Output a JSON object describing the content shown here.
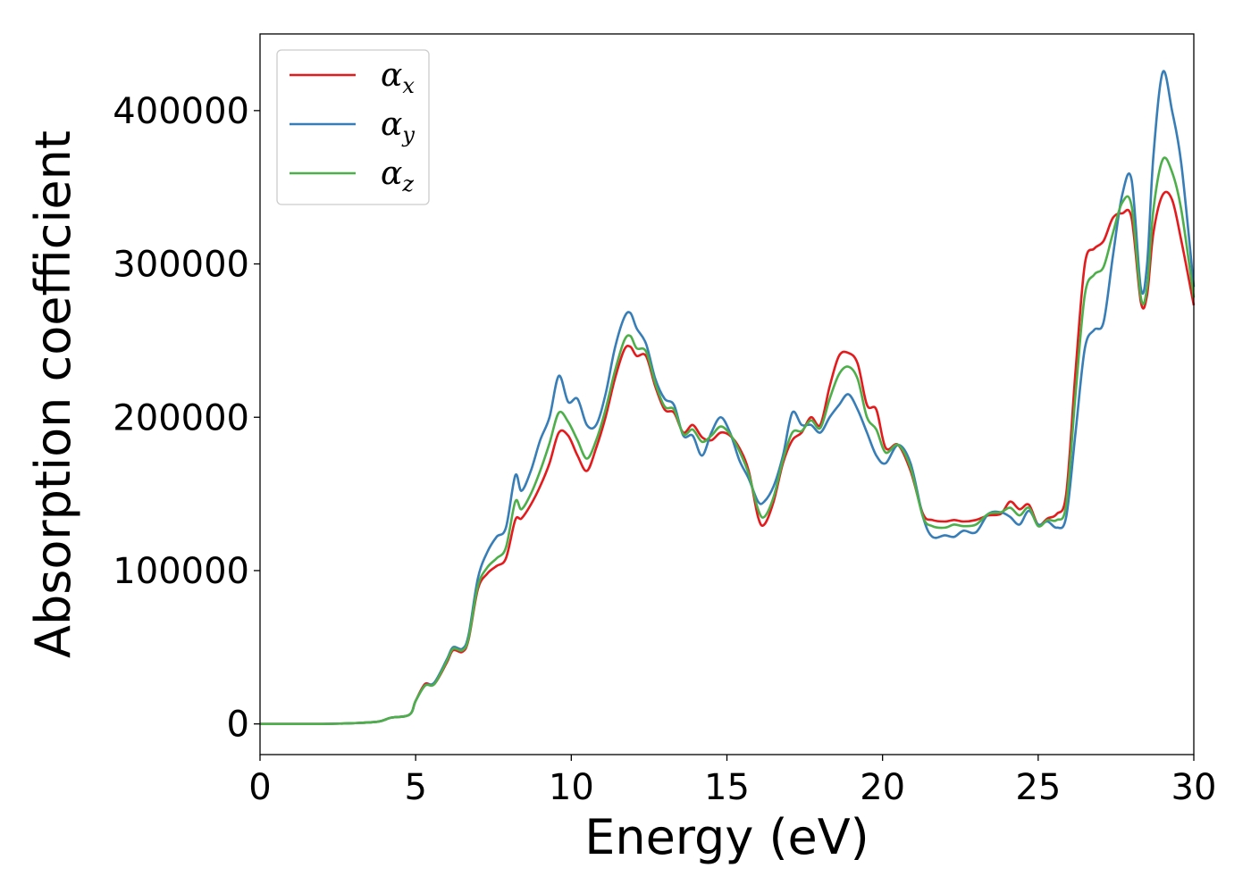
{
  "chart_data": {
    "type": "line",
    "xlabel": "Energy (eV)",
    "ylabel": "Absorption coefficient",
    "xlim": [
      0,
      30
    ],
    "ylim": [
      -20000,
      450000
    ],
    "xticks": [
      "0",
      "5",
      "10",
      "15",
      "20",
      "25",
      "30"
    ],
    "yticks": [
      "0",
      "100000",
      "200000",
      "300000",
      "400000"
    ],
    "grid": false,
    "legend_placement": "top-left",
    "series": [
      {
        "name": "α",
        "subscript": "x",
        "color": "#e41a1c",
        "x": [
          0,
          1,
          2,
          3,
          3.8,
          4.2,
          4.8,
          5.0,
          5.3,
          5.6,
          6.0,
          6.2,
          6.5,
          6.7,
          7.0,
          7.3,
          7.6,
          7.9,
          8.2,
          8.4,
          8.7,
          9.0,
          9.3,
          9.6,
          9.9,
          10.2,
          10.5,
          10.8,
          11.1,
          11.4,
          11.7,
          11.9,
          12.1,
          12.4,
          12.7,
          13.0,
          13.3,
          13.6,
          13.9,
          14.2,
          14.5,
          14.8,
          15.1,
          15.4,
          15.7,
          16.0,
          16.2,
          16.5,
          16.8,
          17.1,
          17.4,
          17.7,
          18.0,
          18.3,
          18.6,
          18.9,
          19.2,
          19.5,
          19.8,
          20.1,
          20.5,
          20.9,
          21.3,
          21.6,
          22.0,
          22.3,
          22.6,
          23.0,
          23.4,
          23.8,
          24.1,
          24.4,
          24.7,
          25.0,
          25.3,
          25.6,
          25.9,
          26.2,
          26.5,
          26.8,
          27.1,
          27.4,
          27.7,
          28.0,
          28.3,
          28.5,
          28.7,
          29.0,
          29.3,
          29.6,
          30.0
        ],
        "y": [
          0,
          0,
          0,
          500,
          1500,
          4000,
          6000,
          15000,
          26000,
          26000,
          40000,
          48000,
          47000,
          55000,
          88000,
          98000,
          103000,
          108000,
          133000,
          134000,
          143000,
          155000,
          170000,
          190000,
          188000,
          175000,
          165000,
          180000,
          200000,
          225000,
          244000,
          246000,
          240000,
          240000,
          220000,
          205000,
          203000,
          190000,
          195000,
          187000,
          185000,
          190000,
          188000,
          180000,
          165000,
          135000,
          130000,
          145000,
          170000,
          185000,
          190000,
          200000,
          195000,
          220000,
          240000,
          242000,
          235000,
          208000,
          205000,
          180000,
          182000,
          165000,
          137000,
          133000,
          132000,
          133000,
          132000,
          133000,
          136000,
          137000,
          145000,
          140000,
          143000,
          130000,
          134000,
          137000,
          150000,
          230000,
          300000,
          310000,
          315000,
          330000,
          333000,
          330000,
          275000,
          280000,
          320000,
          345000,
          342000,
          315000,
          273000
        ]
      },
      {
        "name": "α",
        "subscript": "y",
        "color": "#377eb8",
        "x": [
          0,
          1,
          2,
          3,
          3.8,
          4.2,
          4.8,
          5.0,
          5.3,
          5.6,
          6.0,
          6.2,
          6.5,
          6.7,
          7.0,
          7.3,
          7.6,
          7.9,
          8.2,
          8.4,
          8.7,
          9.0,
          9.3,
          9.6,
          9.9,
          10.2,
          10.5,
          10.8,
          11.1,
          11.4,
          11.7,
          11.9,
          12.1,
          12.4,
          12.7,
          13.0,
          13.3,
          13.6,
          13.9,
          14.2,
          14.5,
          14.8,
          15.1,
          15.4,
          15.7,
          16.0,
          16.2,
          16.5,
          16.8,
          17.1,
          17.4,
          17.7,
          18.0,
          18.3,
          18.6,
          18.9,
          19.2,
          19.5,
          19.8,
          20.1,
          20.5,
          20.9,
          21.3,
          21.6,
          22.0,
          22.3,
          22.6,
          23.0,
          23.4,
          23.8,
          24.1,
          24.4,
          24.7,
          25.0,
          25.3,
          25.6,
          25.9,
          26.2,
          26.5,
          26.8,
          27.1,
          27.4,
          27.7,
          28.0,
          28.3,
          28.5,
          28.7,
          29.0,
          29.3,
          29.6,
          30.0
        ],
        "y": [
          0,
          0,
          0,
          500,
          1500,
          4000,
          6000,
          15000,
          25000,
          27000,
          42000,
          50000,
          49000,
          58000,
          95000,
          112000,
          122000,
          128000,
          162000,
          152000,
          165000,
          185000,
          200000,
          227000,
          210000,
          212000,
          195000,
          195000,
          215000,
          245000,
          265000,
          268000,
          258000,
          248000,
          225000,
          212000,
          208000,
          188000,
          188000,
          175000,
          190000,
          200000,
          190000,
          172000,
          160000,
          145000,
          145000,
          155000,
          175000,
          203000,
          195000,
          195000,
          190000,
          200000,
          208000,
          215000,
          205000,
          190000,
          175000,
          170000,
          182000,
          170000,
          135000,
          122000,
          123000,
          122000,
          126000,
          125000,
          137000,
          138000,
          135000,
          130000,
          139000,
          130000,
          132000,
          128000,
          135000,
          190000,
          245000,
          257000,
          262000,
          305000,
          345000,
          355000,
          284000,
          300000,
          370000,
          425000,
          400000,
          365000,
          285000
        ]
      },
      {
        "name": "α",
        "subscript": "z",
        "color": "#4daf4a",
        "x": [
          0,
          1,
          2,
          3,
          3.8,
          4.2,
          4.8,
          5.0,
          5.3,
          5.6,
          6.0,
          6.2,
          6.5,
          6.7,
          7.0,
          7.3,
          7.6,
          7.9,
          8.2,
          8.4,
          8.7,
          9.0,
          9.3,
          9.6,
          9.9,
          10.2,
          10.5,
          10.8,
          11.1,
          11.4,
          11.7,
          11.9,
          12.1,
          12.4,
          12.7,
          13.0,
          13.3,
          13.6,
          13.9,
          14.2,
          14.5,
          14.8,
          15.1,
          15.4,
          15.7,
          16.0,
          16.2,
          16.5,
          16.8,
          17.1,
          17.4,
          17.7,
          18.0,
          18.3,
          18.6,
          18.9,
          19.2,
          19.5,
          19.8,
          20.1,
          20.5,
          20.9,
          21.3,
          21.6,
          22.0,
          22.3,
          22.6,
          23.0,
          23.4,
          23.8,
          24.1,
          24.4,
          24.7,
          25.0,
          25.3,
          25.6,
          25.9,
          26.2,
          26.5,
          26.8,
          27.1,
          27.4,
          27.7,
          28.0,
          28.3,
          28.5,
          28.7,
          29.0,
          29.3,
          29.6,
          30.0
        ],
        "y": [
          0,
          0,
          0,
          500,
          1500,
          4000,
          6000,
          15000,
          25000,
          26000,
          41000,
          49000,
          48000,
          56000,
          90000,
          102000,
          108000,
          115000,
          145000,
          140000,
          150000,
          165000,
          183000,
          203000,
          197000,
          185000,
          173000,
          185000,
          205000,
          230000,
          250000,
          253000,
          245000,
          243000,
          222000,
          207000,
          205000,
          189000,
          192000,
          184000,
          188000,
          194000,
          189000,
          178000,
          163000,
          140000,
          135000,
          148000,
          172000,
          190000,
          191000,
          198000,
          193000,
          212000,
          228000,
          233000,
          225000,
          200000,
          192000,
          177000,
          182000,
          167000,
          135000,
          129000,
          128000,
          130000,
          129000,
          130000,
          137000,
          138000,
          141000,
          136000,
          141000,
          129000,
          133000,
          133000,
          143000,
          215000,
          280000,
          293000,
          298000,
          320000,
          340000,
          338000,
          278000,
          285000,
          335000,
          368000,
          360000,
          335000,
          278000
        ]
      }
    ]
  }
}
